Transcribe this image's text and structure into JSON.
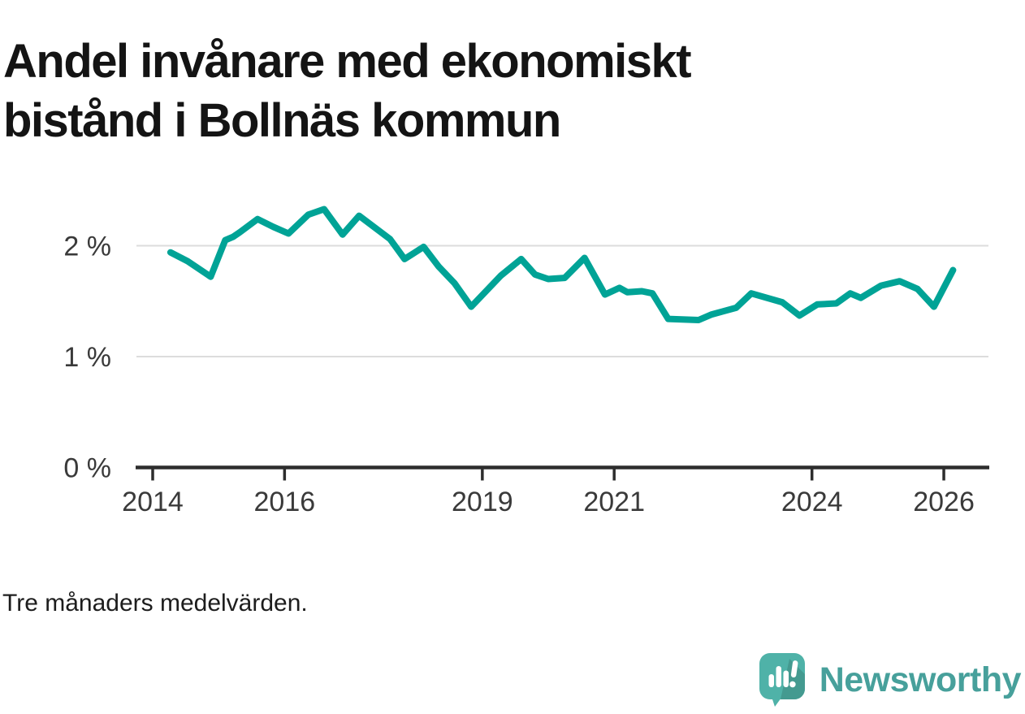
{
  "title": {
    "full": "Andel invånare med ekonomiskt bistånd i Bollnäs kommun",
    "line1": "Andel invånare med ekonomiskt",
    "line2": "bistånd i Bollnäs kommun"
  },
  "footnote": "Tre månaders medelvärden.",
  "logo": {
    "text": "Newsworthy",
    "icon": "newsworthy-speech-bubble-bar-chart-icon"
  },
  "colors": {
    "line": "#00a396",
    "grid": "#dcdcdc",
    "axis": "#2d2d2d",
    "tick_text": "#3a3a3a",
    "title_text": "#141414",
    "footnote_text": "#1d1d1d",
    "logo_teal": "#47a09b",
    "logo_icon_fill": "#4fb2a8",
    "logo_icon_shadow": "#449a90",
    "background": "#ffffff"
  },
  "chart_data": {
    "type": "line",
    "title": "Andel invånare med ekonomiskt bistånd i Bollnäs kommun",
    "note": "Tre månaders medelvärden.",
    "unit": "%",
    "legend": "none",
    "grid": "horizontal-only",
    "x_axis": {
      "ticks": [
        2014,
        2016,
        2019,
        2021,
        2024,
        2026
      ],
      "range": [
        2013.75,
        2026.7
      ]
    },
    "y_axis": {
      "ticks": [
        {
          "value": 0,
          "label": "0 %"
        },
        {
          "value": 1,
          "label": "1 %"
        },
        {
          "value": 2,
          "label": "2 %"
        }
      ],
      "range": [
        0,
        2.5
      ]
    },
    "series": [
      {
        "name": "Andel invånare med ekonomiskt bistånd",
        "color": "#00a396",
        "points": [
          [
            2014.27,
            1.94
          ],
          [
            2014.53,
            1.86
          ],
          [
            2014.88,
            1.72
          ],
          [
            2015.1,
            2.05
          ],
          [
            2015.22,
            2.08
          ],
          [
            2015.32,
            2.12
          ],
          [
            2015.59,
            2.24
          ],
          [
            2015.83,
            2.17
          ],
          [
            2016.06,
            2.11
          ],
          [
            2016.36,
            2.28
          ],
          [
            2016.6,
            2.33
          ],
          [
            2016.88,
            2.1
          ],
          [
            2017.13,
            2.27
          ],
          [
            2017.6,
            2.06
          ],
          [
            2017.82,
            1.88
          ],
          [
            2018.11,
            1.99
          ],
          [
            2018.34,
            1.81
          ],
          [
            2018.58,
            1.66
          ],
          [
            2018.83,
            1.45
          ],
          [
            2019.28,
            1.73
          ],
          [
            2019.59,
            1.88
          ],
          [
            2019.8,
            1.74
          ],
          [
            2020.0,
            1.7
          ],
          [
            2020.25,
            1.71
          ],
          [
            2020.55,
            1.89
          ],
          [
            2020.86,
            1.56
          ],
          [
            2021.08,
            1.62
          ],
          [
            2021.2,
            1.58
          ],
          [
            2021.42,
            1.59
          ],
          [
            2021.58,
            1.57
          ],
          [
            2021.82,
            1.34
          ],
          [
            2022.28,
            1.33
          ],
          [
            2022.48,
            1.38
          ],
          [
            2022.85,
            1.44
          ],
          [
            2023.08,
            1.57
          ],
          [
            2023.55,
            1.49
          ],
          [
            2023.81,
            1.37
          ],
          [
            2024.08,
            1.47
          ],
          [
            2024.37,
            1.48
          ],
          [
            2024.58,
            1.57
          ],
          [
            2024.74,
            1.53
          ],
          [
            2025.05,
            1.64
          ],
          [
            2025.33,
            1.68
          ],
          [
            2025.6,
            1.61
          ],
          [
            2025.85,
            1.45
          ],
          [
            2026.14,
            1.78
          ]
        ]
      }
    ]
  }
}
